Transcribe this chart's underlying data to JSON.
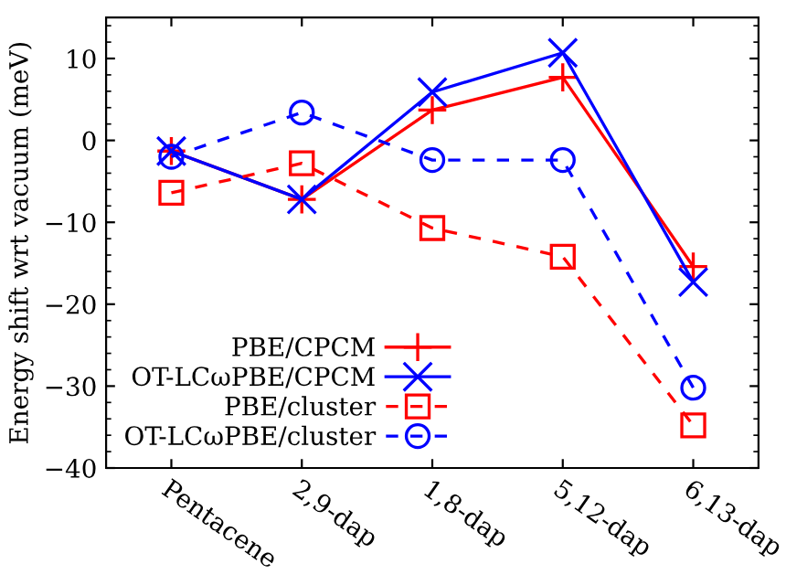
{
  "chart_data": {
    "type": "line",
    "ylabel": "Energy shift wrt vacuum (meV)",
    "categories": [
      "Pentacene",
      "2,9-dap",
      "1,8-dap",
      "5,12-dap",
      "6,13-dap"
    ],
    "series": [
      {
        "name": "PBE/CPCM",
        "color": "#ff0000",
        "marker": "plus",
        "line_style": "solid",
        "values": [
          -1.3,
          -7.2,
          3.7,
          7.7,
          -15.4
        ]
      },
      {
        "name": "OT-LCωPBE/CPCM",
        "color": "#0000ff",
        "marker": "cross",
        "line_style": "solid",
        "values": [
          -1.3,
          -7.2,
          5.9,
          10.7,
          -17.3
        ]
      },
      {
        "name": "PBE/cluster",
        "color": "#ff0000",
        "marker": "square",
        "line_style": "dashed",
        "values": [
          -6.4,
          -2.8,
          -10.7,
          -14.2,
          -34.8
        ]
      },
      {
        "name": "OT-LCωPBE/cluster",
        "color": "#0000ff",
        "marker": "circle",
        "line_style": "dashed",
        "values": [
          -2.0,
          3.4,
          -2.4,
          -2.4,
          -30.2
        ]
      }
    ],
    "ylim": [
      -40,
      15
    ],
    "yticks": [
      -40,
      -30,
      -20,
      -10,
      0,
      10
    ],
    "grid": false,
    "legend": "bottom left"
  }
}
